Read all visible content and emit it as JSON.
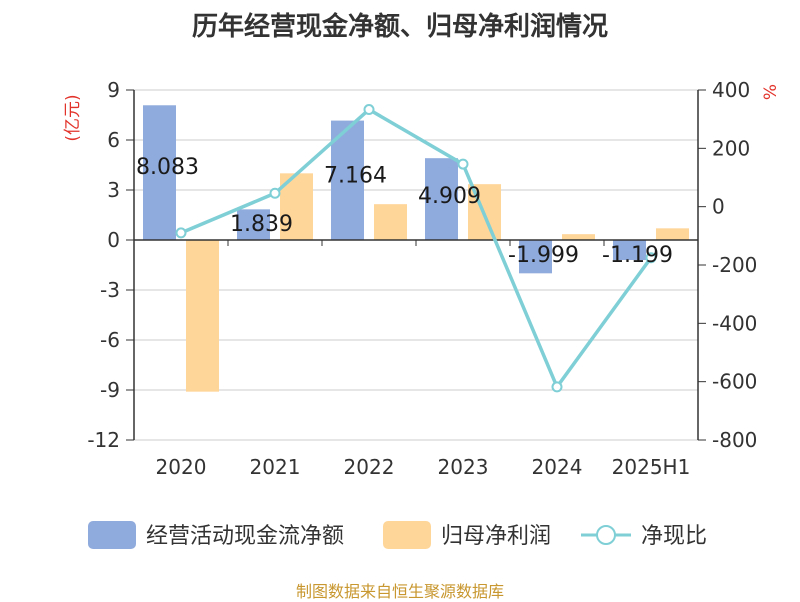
{
  "title": "历年经营现金净额、归母净利润情况",
  "source": "制图数据来自恒生聚源数据库",
  "chart_data": {
    "type": "bar",
    "categories": [
      "2020",
      "2021",
      "2022",
      "2023",
      "2024",
      "2025H1"
    ],
    "left_axis": {
      "unit": "(亿元)",
      "ticks": [
        "9",
        "6",
        "3",
        "0",
        "-3",
        "-6",
        "-9",
        "-12"
      ],
      "ylim": [
        -12,
        9
      ]
    },
    "right_axis": {
      "unit": "%",
      "ticks": [
        "400",
        "200",
        "0",
        "-200",
        "-400",
        "-600",
        "-800"
      ],
      "ylim": [
        -800,
        400
      ]
    },
    "series": [
      {
        "name": "经营活动现金流净额",
        "type": "bar",
        "axis": "left",
        "color": "#8faadc",
        "values": [
          8.083,
          1.839,
          7.164,
          4.909,
          -1.999,
          -1.199
        ],
        "labels": [
          "8.083",
          "1.839",
          "7.164",
          "4.909",
          "-1.999",
          "-1.199"
        ]
      },
      {
        "name": "归母净利润",
        "type": "bar",
        "axis": "left",
        "color": "#ffd699",
        "values": [
          -9.1,
          4.0,
          2.15,
          3.35,
          0.35,
          0.7
        ]
      },
      {
        "name": "净现比",
        "type": "line",
        "axis": "right",
        "color": "#7fcfd6",
        "values": [
          -90,
          46,
          333,
          146,
          -618,
          -175
        ]
      }
    ],
    "grid": true,
    "legend_position": "bottom"
  }
}
